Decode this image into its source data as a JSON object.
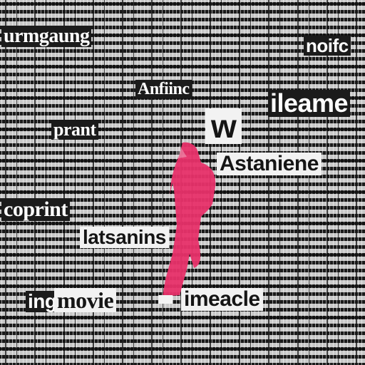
{
  "words": {
    "w1": "urmgaung",
    "w2": "noifc",
    "w3": "Anfiinc",
    "w4": "ileame",
    "w5": "prant",
    "w6": "w",
    "w7": "Astaniene",
    "w8": "coprint",
    "w9": "latsanins",
    "w10": "ing",
    "w11": "movie",
    "w12": "imeacle"
  },
  "colors": {
    "background": "#1a1a1a",
    "text_light": "#f2f2f2",
    "figure": "#e8316a"
  }
}
